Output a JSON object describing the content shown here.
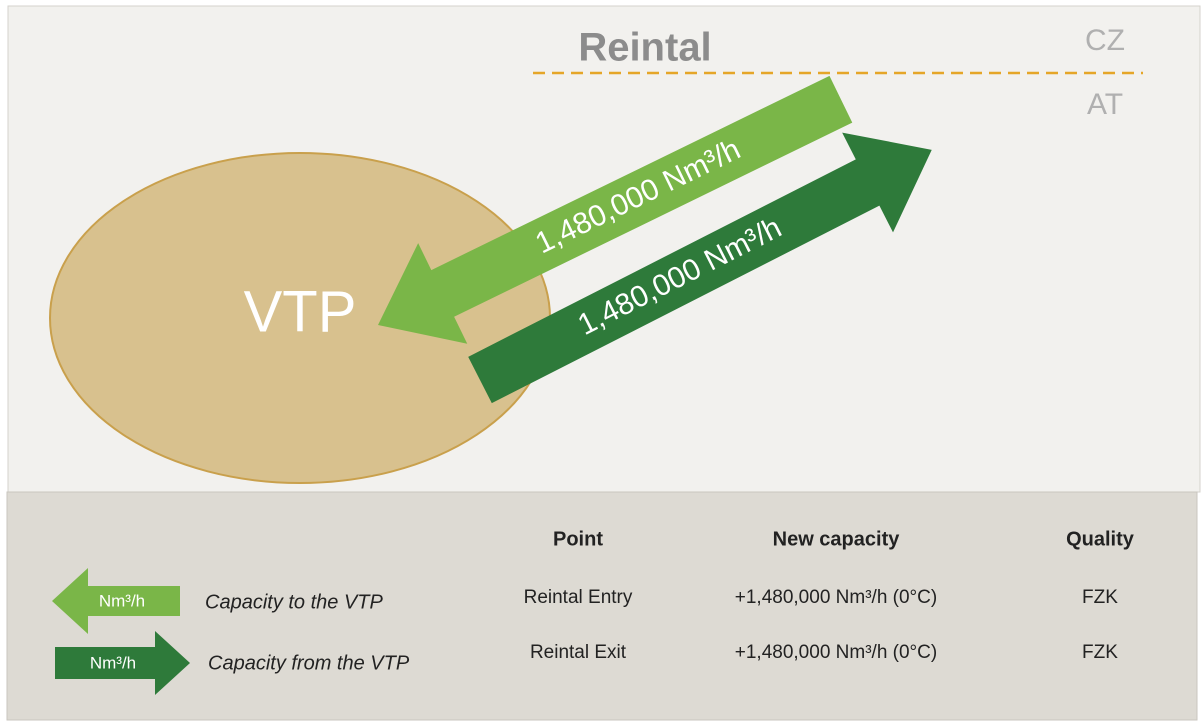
{
  "diagram": {
    "title": "Reintal",
    "border_labels": [
      "CZ",
      "AT"
    ],
    "hub": "VTP",
    "arrows": [
      {
        "label": "1,480,000 Nm³/h"
      },
      {
        "label": "1,480,000 Nm³/h"
      }
    ]
  },
  "legend": {
    "items": [
      {
        "icon": "Nm³/h",
        "label": "Capacity to the VTP"
      },
      {
        "icon": "Nm³/h",
        "label": "Capacity from the VTP"
      }
    ]
  },
  "table": {
    "header": [
      "Point",
      "New capacity",
      "Quality"
    ],
    "rows": [
      [
        "Reintal Entry",
        "+1,480,000 Nm³/h (0°C)",
        "FZK"
      ],
      [
        "Reintal Exit",
        "+1,480,000 Nm³/h (0°C)",
        "FZK"
      ]
    ]
  }
}
